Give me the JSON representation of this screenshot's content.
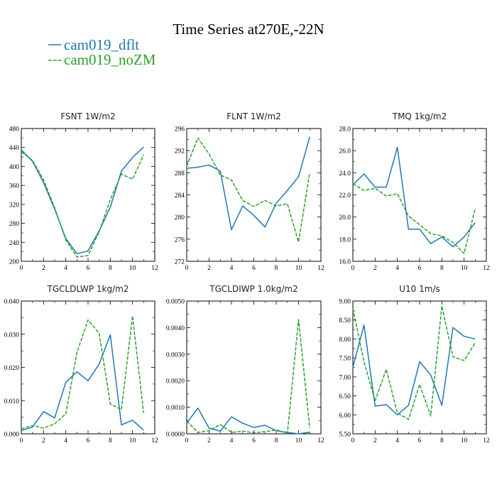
{
  "figure_title": "Time Series at270E,-22N",
  "legend": [
    {
      "name": "cam019_dflt",
      "color": "#1f77b4",
      "dash": false
    },
    {
      "name": "cam019_noZM",
      "color": "#2ca02c",
      "dash": true
    }
  ],
  "chart_data": [
    {
      "type": "line",
      "title": "FSNT   1W/m2",
      "xlim": [
        0,
        12
      ],
      "xticks": [
        0,
        2,
        4,
        6,
        8,
        10,
        12
      ],
      "ylim": [
        200,
        480
      ],
      "yticks": [
        200,
        240,
        280,
        320,
        360,
        400,
        440,
        480
      ],
      "ytick_labels": [
        "200",
        "240",
        "280",
        "320",
        "360",
        "400",
        "440",
        "480"
      ],
      "x": [
        0,
        1,
        2,
        3,
        4,
        5,
        6,
        7,
        8,
        9,
        10,
        11
      ],
      "series": [
        {
          "name": "cam019_dflt",
          "values": [
            435,
            411,
            366,
            310,
            248,
            216,
            222,
            264,
            314,
            390,
            419,
            441
          ]
        },
        {
          "name": "cam019_noZM",
          "values": [
            431,
            413,
            372,
            313,
            245,
            209,
            212,
            262,
            330,
            384,
            373,
            425
          ]
        }
      ]
    },
    {
      "type": "line",
      "title": "FLNT   1W/m2",
      "xlim": [
        0,
        12
      ],
      "xticks": [
        0,
        2,
        4,
        6,
        8,
        10,
        12
      ],
      "ylim": [
        272,
        296
      ],
      "yticks": [
        272,
        276,
        280,
        284,
        288,
        292,
        296
      ],
      "ytick_labels": [
        "272",
        "276",
        "280",
        "284",
        "288",
        "292",
        "296"
      ],
      "x": [
        0,
        1,
        2,
        3,
        4,
        5,
        6,
        7,
        8,
        9,
        10,
        11
      ],
      "series": [
        {
          "name": "cam019_dflt",
          "values": [
            288.8,
            289.0,
            289.4,
            288.3,
            277.7,
            282.0,
            280.3,
            278.2,
            282.5,
            284.8,
            287.3,
            294.5
          ]
        },
        {
          "name": "cam019_noZM",
          "values": [
            289.2,
            294.3,
            291.4,
            287.6,
            286.7,
            283.0,
            281.9,
            283.0,
            282.0,
            282.4,
            275.5,
            288.0
          ]
        }
      ]
    },
    {
      "type": "line",
      "title": "TMQ   1kg/m2",
      "xlim": [
        0,
        12
      ],
      "xticks": [
        0,
        2,
        4,
        6,
        8,
        10,
        12
      ],
      "ylim": [
        16.0,
        28.0
      ],
      "yticks": [
        16.0,
        18.0,
        20.0,
        22.0,
        24.0,
        26.0,
        28.0
      ],
      "ytick_labels": [
        "16.0",
        "18.0",
        "20.0",
        "22.0",
        "24.0",
        "26.0",
        "28.0"
      ],
      "x": [
        0,
        1,
        2,
        3,
        4,
        5,
        6,
        7,
        8,
        9,
        10,
        11
      ],
      "series": [
        {
          "name": "cam019_dflt",
          "values": [
            22.9,
            23.9,
            22.7,
            22.7,
            26.3,
            18.9,
            18.9,
            17.6,
            18.2,
            17.3,
            18.2,
            19.5
          ]
        },
        {
          "name": "cam019_noZM",
          "values": [
            23.0,
            22.4,
            22.6,
            21.9,
            22.1,
            20.1,
            19.3,
            18.5,
            18.3,
            17.7,
            16.7,
            20.8
          ]
        }
      ]
    },
    {
      "type": "line",
      "title": "TGCLDLWP   1kg/m2",
      "xlim": [
        0,
        12
      ],
      "xticks": [
        0,
        2,
        4,
        6,
        8,
        10,
        12
      ],
      "ylim": [
        0.0,
        0.04
      ],
      "yticks": [
        0.0,
        0.01,
        0.02,
        0.03,
        0.04
      ],
      "ytick_labels": [
        "0.000",
        "0.010",
        "0.020",
        "0.030",
        "0.040"
      ],
      "x": [
        0,
        1,
        2,
        3,
        4,
        5,
        6,
        7,
        8,
        9,
        10,
        11
      ],
      "series": [
        {
          "name": "cam019_dflt",
          "values": [
            0.001,
            0.002,
            0.0067,
            0.0048,
            0.0155,
            0.0187,
            0.016,
            0.021,
            0.0298,
            0.0027,
            0.0041,
            0.0011
          ]
        },
        {
          "name": "cam019_noZM",
          "values": [
            0.0015,
            0.0025,
            0.0017,
            0.003,
            0.006,
            0.0245,
            0.0343,
            0.0303,
            0.009,
            0.0073,
            0.0355,
            0.0063
          ]
        }
      ]
    },
    {
      "type": "line",
      "title": "TGCLDIWP   1.0kg/m2",
      "xlim": [
        0,
        12
      ],
      "xticks": [
        0,
        2,
        4,
        6,
        8,
        10,
        12
      ],
      "ylim": [
        0.0,
        0.005
      ],
      "yticks": [
        0.0,
        0.001,
        0.002,
        0.003,
        0.004,
        0.005
      ],
      "ytick_labels": [
        "0.0000",
        "0.0010",
        "0.0020",
        "0.0030",
        "0.0040",
        "0.0050"
      ],
      "x": [
        0,
        1,
        2,
        3,
        4,
        5,
        6,
        7,
        8,
        9,
        10,
        11
      ],
      "series": [
        {
          "name": "cam019_dflt",
          "values": [
            0.0004,
            0.00097,
            0.00021,
            0.0001,
            0.00064,
            0.0004,
            0.00024,
            0.00032,
            0.00012,
            5e-05,
            0.0,
            6e-05
          ]
        },
        {
          "name": "cam019_noZM",
          "values": [
            0.00048,
            5e-05,
            0.00012,
            0.00035,
            5e-05,
            0.0001,
            4e-05,
            8e-05,
            0.00015,
            2e-05,
            0.0043,
            0.00022
          ]
        }
      ]
    },
    {
      "type": "line",
      "title": "U10   1m/s",
      "xlim": [
        0,
        12
      ],
      "xticks": [
        0,
        2,
        4,
        6,
        8,
        10,
        12
      ],
      "ylim": [
        5.5,
        9.0
      ],
      "yticks": [
        5.5,
        6.0,
        6.5,
        7.0,
        7.5,
        8.0,
        8.5,
        9.0
      ],
      "ytick_labels": [
        "5.50",
        "6.00",
        "6.50",
        "7.00",
        "7.50",
        "8.00",
        "8.50",
        "9.00"
      ],
      "x": [
        0,
        1,
        2,
        3,
        4,
        5,
        6,
        7,
        8,
        9,
        10,
        11
      ],
      "series": [
        {
          "name": "cam019_dflt",
          "values": [
            7.25,
            8.37,
            6.23,
            6.27,
            6.0,
            6.25,
            7.4,
            7.05,
            6.25,
            8.3,
            8.07,
            8.0
          ]
        },
        {
          "name": "cam019_noZM",
          "values": [
            8.8,
            7.4,
            6.37,
            7.2,
            6.05,
            5.88,
            6.8,
            5.97,
            8.87,
            7.53,
            7.43,
            7.9
          ]
        }
      ]
    }
  ]
}
